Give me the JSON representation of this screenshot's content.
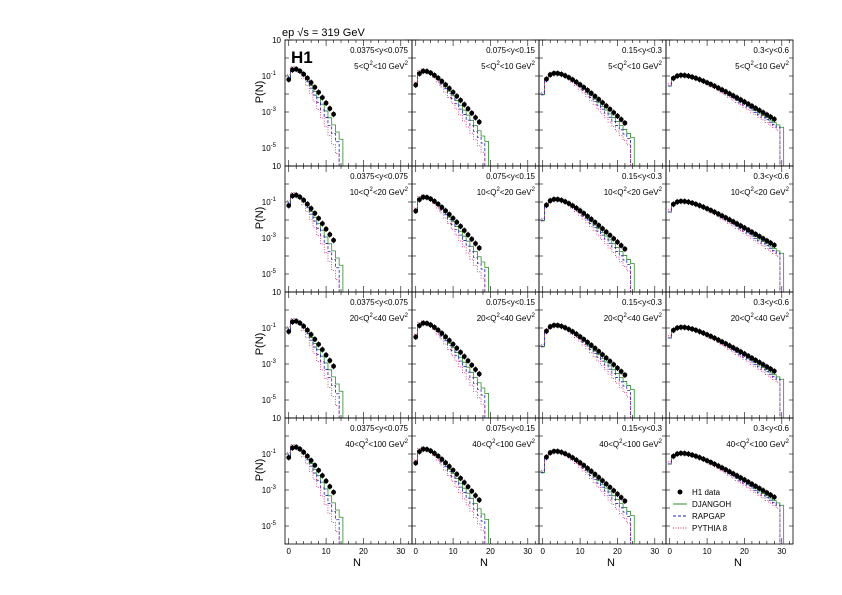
{
  "figure": {
    "header": "ep √s = 319 GeV",
    "experiment_logo": "H1",
    "ylabel": "P(N)",
    "xlabel": "N"
  },
  "chart_data": {
    "type": "line",
    "description_axes": {
      "x_ticks": [
        0,
        10,
        20,
        30
      ],
      "x_range": [
        -1,
        33
      ],
      "y_scale": "log",
      "y_tick_labels": [
        "10",
        "10⁻¹",
        "10⁻³",
        "10⁻⁵"
      ],
      "y_range_exponent": [
        -6,
        1
      ]
    },
    "legend": {
      "placement": "bottom-right panel",
      "entries": [
        {
          "label": "H1 data",
          "color": "#000000",
          "style": "marker"
        },
        {
          "label": "DJANGOH",
          "color": "#2e8b2e",
          "style": "solid"
        },
        {
          "label": "RAPGAP",
          "color": "#1f1fb0",
          "style": "dashed"
        },
        {
          "label": "PYTHIA 8",
          "color": "#d0207a",
          "style": "dotted"
        }
      ]
    },
    "panels": [
      {
        "y_label": "0.0375<y<0.075",
        "q2_pre": "5<Q",
        "q2_post": "<10 GeV",
        "mean": 3.0,
        "width": 2.4,
        "tail_end": 12,
        "data_n": [
          0,
          1,
          2,
          3,
          4,
          5,
          6,
          7,
          8,
          9,
          10,
          11,
          12
        ]
      },
      {
        "y_label": "0.075<y<0.15",
        "q2_pre": "5<Q",
        "q2_post": "<10 GeV",
        "mean": 4.0,
        "width": 3.0,
        "tail_end": 17,
        "data_n": [
          0,
          1,
          2,
          3,
          4,
          5,
          6,
          7,
          8,
          9,
          10,
          11,
          12,
          13,
          14,
          15,
          16,
          17
        ]
      },
      {
        "y_label": "0.15<y<0.3",
        "q2_pre": "5<Q",
        "q2_post": "<10 GeV",
        "mean": 5.5,
        "width": 3.8,
        "tail_end": 22,
        "data_n": [
          1,
          2,
          3,
          4,
          5,
          6,
          7,
          8,
          9,
          10,
          11,
          12,
          13,
          14,
          15,
          16,
          17,
          18,
          19,
          20,
          21,
          22
        ]
      },
      {
        "y_label": "0.3<y<0.6",
        "q2_pre": "5<Q",
        "q2_post": "<10 GeV",
        "mean": 6.5,
        "width": 5.0,
        "tail_end": 28,
        "data_n": [
          1,
          2,
          3,
          4,
          5,
          6,
          7,
          8,
          9,
          10,
          11,
          12,
          13,
          14,
          15,
          16,
          17,
          18,
          19,
          20,
          21,
          22,
          23,
          24,
          25,
          26,
          27,
          28
        ]
      },
      {
        "y_label": "0.0375<y<0.075",
        "q2_pre": "10<Q",
        "q2_post": "<20 GeV",
        "mean": 3.0,
        "width": 2.4,
        "tail_end": 12,
        "data_n": [
          0,
          1,
          2,
          3,
          4,
          5,
          6,
          7,
          8,
          9,
          10,
          11,
          12
        ]
      },
      {
        "y_label": "0.075<y<0.15",
        "q2_pre": "10<Q",
        "q2_post": "<20 GeV",
        "mean": 4.0,
        "width": 3.0,
        "tail_end": 17,
        "data_n": [
          0,
          1,
          2,
          3,
          4,
          5,
          6,
          7,
          8,
          9,
          10,
          11,
          12,
          13,
          14,
          15,
          16,
          17
        ]
      },
      {
        "y_label": "0.15<y<0.3",
        "q2_pre": "10<Q",
        "q2_post": "<20 GeV",
        "mean": 5.5,
        "width": 3.8,
        "tail_end": 22,
        "data_n": [
          1,
          2,
          3,
          4,
          5,
          6,
          7,
          8,
          9,
          10,
          11,
          12,
          13,
          14,
          15,
          16,
          17,
          18,
          19,
          20,
          21,
          22
        ]
      },
      {
        "y_label": "0.3<y<0.6",
        "q2_pre": "10<Q",
        "q2_post": "<20 GeV",
        "mean": 6.5,
        "width": 5.0,
        "tail_end": 28,
        "data_n": [
          1,
          2,
          3,
          4,
          5,
          6,
          7,
          8,
          9,
          10,
          11,
          12,
          13,
          14,
          15,
          16,
          17,
          18,
          19,
          20,
          21,
          22,
          23,
          24,
          25,
          26,
          27,
          28
        ]
      },
      {
        "y_label": "0.0375<y<0.075",
        "q2_pre": "20<Q",
        "q2_post": "<40 GeV",
        "mean": 3.0,
        "width": 2.4,
        "tail_end": 12,
        "data_n": [
          0,
          1,
          2,
          3,
          4,
          5,
          6,
          7,
          8,
          9,
          10,
          11,
          12
        ]
      },
      {
        "y_label": "0.075<y<0.15",
        "q2_pre": "20<Q",
        "q2_post": "<40 GeV",
        "mean": 4.0,
        "width": 3.0,
        "tail_end": 17,
        "data_n": [
          0,
          1,
          2,
          3,
          4,
          5,
          6,
          7,
          8,
          9,
          10,
          11,
          12,
          13,
          14,
          15,
          16,
          17
        ]
      },
      {
        "y_label": "0.15<y<0.3",
        "q2_pre": "20<Q",
        "q2_post": "<40 GeV",
        "mean": 5.5,
        "width": 3.8,
        "tail_end": 22,
        "data_n": [
          1,
          2,
          3,
          4,
          5,
          6,
          7,
          8,
          9,
          10,
          11,
          12,
          13,
          14,
          15,
          16,
          17,
          18,
          19,
          20,
          21,
          22
        ]
      },
      {
        "y_label": "0.3<y<0.6",
        "q2_pre": "20<Q",
        "q2_post": "<40 GeV",
        "mean": 6.5,
        "width": 5.0,
        "tail_end": 28,
        "data_n": [
          1,
          2,
          3,
          4,
          5,
          6,
          7,
          8,
          9,
          10,
          11,
          12,
          13,
          14,
          15,
          16,
          17,
          18,
          19,
          20,
          21,
          22,
          23,
          24,
          25,
          26,
          27,
          28
        ]
      },
      {
        "y_label": "0.0375<y<0.075",
        "q2_pre": "40<Q",
        "q2_post": "<100 GeV",
        "mean": 3.0,
        "width": 2.4,
        "tail_end": 12,
        "data_n": [
          0,
          1,
          2,
          3,
          4,
          5,
          6,
          7,
          8,
          9,
          10,
          11,
          12
        ]
      },
      {
        "y_label": "0.075<y<0.15",
        "q2_pre": "40<Q",
        "q2_post": "<100 GeV",
        "mean": 4.0,
        "width": 3.0,
        "tail_end": 17,
        "data_n": [
          0,
          1,
          2,
          3,
          4,
          5,
          6,
          7,
          8,
          9,
          10,
          11,
          12,
          13,
          14,
          15,
          16,
          17
        ]
      },
      {
        "y_label": "0.15<y<0.3",
        "q2_pre": "40<Q",
        "q2_post": "<100 GeV",
        "mean": 5.5,
        "width": 3.8,
        "tail_end": 22,
        "data_n": [
          1,
          2,
          3,
          4,
          5,
          6,
          7,
          8,
          9,
          10,
          11,
          12,
          13,
          14,
          15,
          16,
          17,
          18,
          19,
          20,
          21,
          22
        ]
      },
      {
        "y_label": "0.3<y<0.6",
        "q2_pre": "40<Q",
        "q2_post": "<100 GeV",
        "mean": 6.5,
        "width": 5.0,
        "tail_end": 28,
        "data_n": [
          1,
          2,
          3,
          4,
          5,
          6,
          7,
          8,
          9,
          10,
          11,
          12,
          13,
          14,
          15,
          16,
          17,
          18,
          19,
          20,
          21,
          22,
          23,
          24,
          25,
          26,
          27,
          28
        ]
      }
    ]
  }
}
